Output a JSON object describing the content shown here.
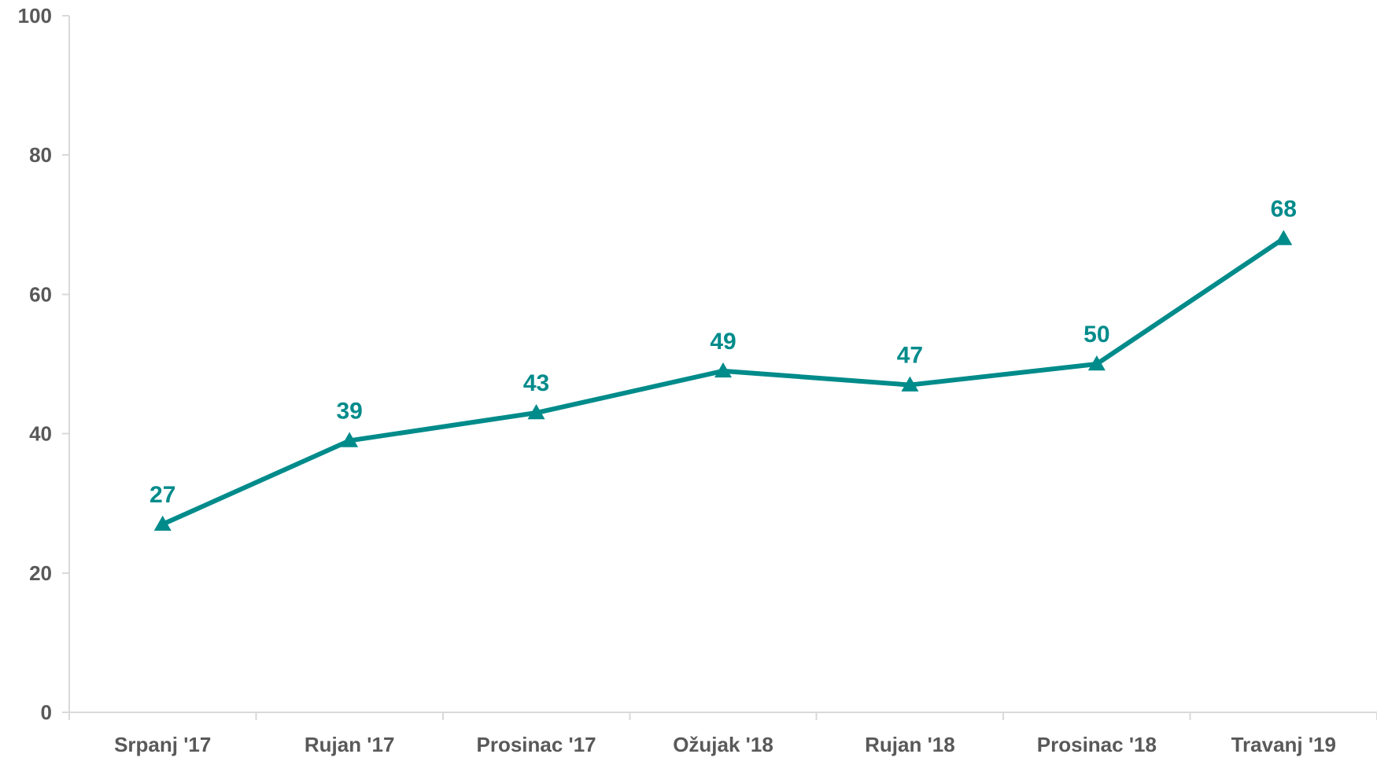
{
  "chart_data": {
    "type": "line",
    "title": "",
    "xlabel": "",
    "ylabel": "",
    "categories": [
      "Srpanj '17",
      "Rujan '17",
      "Prosinac '17",
      "Ožujak '18",
      "Rujan '18",
      "Prosinac '18",
      "Travanj '19"
    ],
    "series": [
      {
        "values": [
          27,
          39,
          43,
          49,
          47,
          50,
          68
        ],
        "labels": [
          "27",
          "39",
          "43",
          "49",
          "47",
          "50",
          "68"
        ],
        "color": "#008b8b",
        "marker": "triangle"
      }
    ],
    "ylim": [
      0,
      100
    ],
    "yticks": [
      0,
      20,
      40,
      60,
      80,
      100
    ],
    "ytick_labels": [
      "0",
      "20",
      "40",
      "60",
      "80",
      "100"
    ],
    "grid": false,
    "legend": "none",
    "data_labels": true
  }
}
